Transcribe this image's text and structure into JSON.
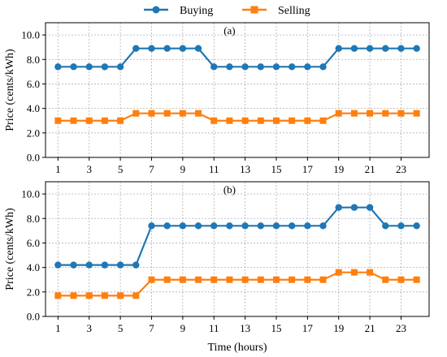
{
  "chart_data": [
    {
      "type": "line",
      "panel_label": "(a)",
      "x": [
        1,
        2,
        3,
        4,
        5,
        6,
        7,
        8,
        9,
        10,
        11,
        12,
        13,
        14,
        15,
        16,
        17,
        18,
        19,
        20,
        21,
        22,
        23,
        24
      ],
      "xticks": [
        1,
        3,
        5,
        7,
        9,
        11,
        13,
        15,
        17,
        19,
        21,
        23
      ],
      "xlim": [
        0.2,
        24.8
      ],
      "ylim": [
        0,
        11
      ],
      "yticks": [
        0.0,
        2.0,
        4.0,
        6.0,
        8.0,
        10.0
      ],
      "ytick_labels": [
        "0.0",
        "2.0",
        "4.0",
        "6.0",
        "8.0",
        "10.0"
      ],
      "ylabel": "Price (cents/kWh)",
      "xlabel": "",
      "grid": true,
      "series": [
        {
          "name": "Buying",
          "color": "#1f77b4",
          "marker": "circle",
          "values": [
            7.4,
            7.4,
            7.4,
            7.4,
            7.4,
            8.9,
            8.9,
            8.9,
            8.9,
            8.9,
            7.4,
            7.4,
            7.4,
            7.4,
            7.4,
            7.4,
            7.4,
            7.4,
            8.9,
            8.9,
            8.9,
            8.9,
            8.9,
            8.9
          ]
        },
        {
          "name": "Selling",
          "color": "#ff7f0e",
          "marker": "square",
          "values": [
            3.0,
            3.0,
            3.0,
            3.0,
            3.0,
            3.6,
            3.6,
            3.6,
            3.6,
            3.6,
            3.0,
            3.0,
            3.0,
            3.0,
            3.0,
            3.0,
            3.0,
            3.0,
            3.6,
            3.6,
            3.6,
            3.6,
            3.6,
            3.6
          ]
        }
      ]
    },
    {
      "type": "line",
      "panel_label": "(b)",
      "x": [
        1,
        2,
        3,
        4,
        5,
        6,
        7,
        8,
        9,
        10,
        11,
        12,
        13,
        14,
        15,
        16,
        17,
        18,
        19,
        20,
        21,
        22,
        23,
        24
      ],
      "xticks": [
        1,
        3,
        5,
        7,
        9,
        11,
        13,
        15,
        17,
        19,
        21,
        23
      ],
      "xlim": [
        0.2,
        24.8
      ],
      "ylim": [
        0,
        11
      ],
      "yticks": [
        0.0,
        2.0,
        4.0,
        6.0,
        8.0,
        10.0
      ],
      "ytick_labels": [
        "0.0",
        "2.0",
        "4.0",
        "6.0",
        "8.0",
        "10.0"
      ],
      "ylabel": "Price (cents/kWh)",
      "xlabel": "Time (hours)",
      "grid": true,
      "series": [
        {
          "name": "Buying",
          "color": "#1f77b4",
          "marker": "circle",
          "values": [
            4.2,
            4.2,
            4.2,
            4.2,
            4.2,
            4.2,
            7.4,
            7.4,
            7.4,
            7.4,
            7.4,
            7.4,
            7.4,
            7.4,
            7.4,
            7.4,
            7.4,
            7.4,
            8.9,
            8.9,
            8.9,
            7.4,
            7.4,
            7.4
          ]
        },
        {
          "name": "Selling",
          "color": "#ff7f0e",
          "marker": "square",
          "values": [
            1.7,
            1.7,
            1.7,
            1.7,
            1.7,
            1.7,
            3.0,
            3.0,
            3.0,
            3.0,
            3.0,
            3.0,
            3.0,
            3.0,
            3.0,
            3.0,
            3.0,
            3.0,
            3.6,
            3.6,
            3.6,
            3.0,
            3.0,
            3.0
          ]
        }
      ]
    }
  ],
  "legend": {
    "placement": "top-center",
    "items": [
      {
        "label": "Buying",
        "color": "#1f77b4",
        "marker": "circle"
      },
      {
        "label": "Selling",
        "color": "#ff7f0e",
        "marker": "square"
      }
    ]
  }
}
